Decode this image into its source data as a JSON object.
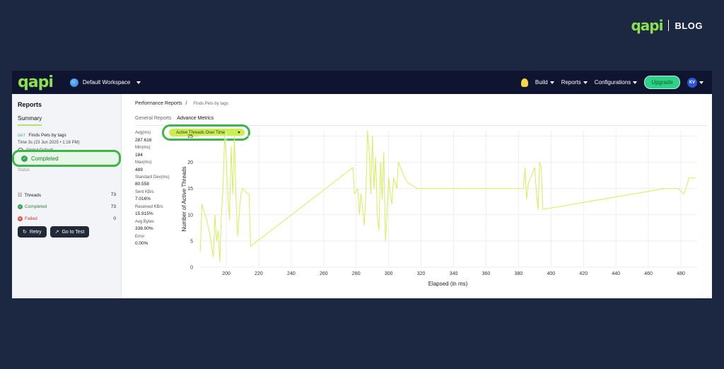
{
  "brand": {
    "logo": "qapi",
    "tag": "BLOG"
  },
  "topbar": {
    "logo": "qapi",
    "workspace": "Default Workspace",
    "menus": [
      "Build",
      "Reports",
      "Configurations"
    ],
    "upgrade": "Upgrade",
    "avatar": "KV"
  },
  "sidebar": {
    "title": "Reports",
    "tab": "Summary",
    "request": {
      "method": "GET",
      "name": "Finds Pets by tags"
    },
    "time": "Time  3s (23 Jun 2025 • 1:16 PM)",
    "environment": "Global Default",
    "status_label": "Status",
    "status": "Completed",
    "stats": [
      {
        "label": "Threads",
        "value": "73"
      },
      {
        "label": "Completed",
        "value": "73"
      },
      {
        "label": "Failed",
        "value": "0"
      }
    ],
    "retry": "Retry",
    "go_to_test": "Go to Test"
  },
  "main": {
    "breadcrumb": "Performance Reports",
    "breadcrumb_sep": "/",
    "breadcrumb_sub": "Finds Pets by tags",
    "tabs": [
      "General Reports",
      "Advance Metrics"
    ],
    "dropdown": "Active Threads Over Time",
    "metrics": [
      {
        "label": "Avg(ms)",
        "value": "287.616"
      },
      {
        "label": "Min(ms)",
        "value": "184"
      },
      {
        "label": "Max(ms)",
        "value": "489"
      },
      {
        "label": "Standard Dev(ms)",
        "value": "80.558"
      },
      {
        "label": "Sent KB/s",
        "value": "7.016%"
      },
      {
        "label": "Received KB/s",
        "value": "15.915%"
      },
      {
        "label": "Avg Bytes",
        "value": "338.00%"
      },
      {
        "label": "Error",
        "value": "0.00%"
      }
    ]
  },
  "chart_data": {
    "type": "line",
    "xlabel": "Elapsed (in ms)",
    "ylabel": "Number of Active Threads",
    "xlim": [
      183,
      490
    ],
    "ylim": [
      0,
      26
    ],
    "xticks": [
      200,
      220,
      240,
      260,
      280,
      300,
      320,
      340,
      360,
      380,
      400,
      420,
      440,
      460,
      480
    ],
    "yticks": [
      0,
      5,
      10,
      15,
      20,
      25
    ],
    "grid": true,
    "color": "#d4ef5a",
    "points": [
      [
        184,
        3
      ],
      [
        185,
        12
      ],
      [
        188,
        9
      ],
      [
        190,
        6
      ],
      [
        192,
        2
      ],
      [
        193,
        10
      ],
      [
        194,
        5
      ],
      [
        195,
        7
      ],
      [
        196,
        1
      ],
      [
        197,
        10
      ],
      [
        198,
        15
      ],
      [
        199,
        25
      ],
      [
        200,
        21
      ],
      [
        201,
        14
      ],
      [
        202,
        9
      ],
      [
        203,
        23
      ],
      [
        204,
        14
      ],
      [
        205,
        25
      ],
      [
        206,
        13
      ],
      [
        207,
        6
      ],
      [
        208,
        10
      ],
      [
        209,
        14
      ],
      [
        210,
        15
      ],
      [
        213,
        14
      ],
      [
        214,
        14
      ],
      [
        215,
        4
      ],
      [
        278,
        19
      ],
      [
        279,
        14
      ],
      [
        281,
        15
      ],
      [
        282,
        10
      ],
      [
        283,
        14
      ],
      [
        284,
        11
      ],
      [
        285,
        8
      ],
      [
        286,
        14
      ],
      [
        287,
        26
      ],
      [
        288,
        22
      ],
      [
        289,
        14
      ],
      [
        290,
        25
      ],
      [
        291,
        15
      ],
      [
        292,
        21
      ],
      [
        293,
        10
      ],
      [
        294,
        7
      ],
      [
        295,
        20
      ],
      [
        296,
        13
      ],
      [
        297,
        22
      ],
      [
        298,
        5
      ],
      [
        299,
        10
      ],
      [
        300,
        17
      ],
      [
        301,
        14
      ],
      [
        302,
        12
      ],
      [
        303,
        17
      ],
      [
        304,
        16
      ],
      [
        305,
        15
      ],
      [
        306,
        20
      ],
      [
        310,
        17
      ],
      [
        312,
        16
      ],
      [
        318,
        15
      ],
      [
        383,
        15
      ],
      [
        384,
        19
      ],
      [
        385,
        13
      ],
      [
        386,
        16
      ],
      [
        390,
        19
      ],
      [
        391,
        14
      ],
      [
        392,
        11
      ],
      [
        393,
        20
      ],
      [
        394,
        19
      ],
      [
        395,
        11
      ],
      [
        470,
        15
      ],
      [
        472,
        15
      ],
      [
        478,
        15
      ],
      [
        482,
        14
      ],
      [
        485,
        17
      ],
      [
        489,
        17
      ]
    ]
  },
  "colors": {
    "accent": "#c9ef4e",
    "highlight": "#3cb54a",
    "page_bg": "#1c2742",
    "topbar_bg": "#0f1530"
  }
}
